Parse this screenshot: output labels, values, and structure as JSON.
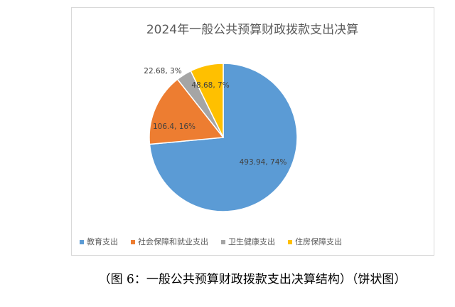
{
  "chart_data": {
    "type": "pie",
    "title": "2024年一般公共预算财政拨款支出决算",
    "categories": [
      "教育支出",
      "社会保障和就业支出",
      "卫生健康支出",
      "住房保障支出"
    ],
    "values": [
      493.94,
      106.4,
      22.68,
      48.68
    ],
    "value_labels": [
      "493.94, 74%",
      "106.4, 16%",
      "22.68, 3%",
      "48.68, 7%"
    ],
    "colors": [
      "#5b9bd5",
      "#ed7d31",
      "#a5a5a5",
      "#ffc000"
    ],
    "legend": "bottom"
  },
  "caption": "（图 6：一般公共预算财政拨款支出决算结构）（饼状图）"
}
